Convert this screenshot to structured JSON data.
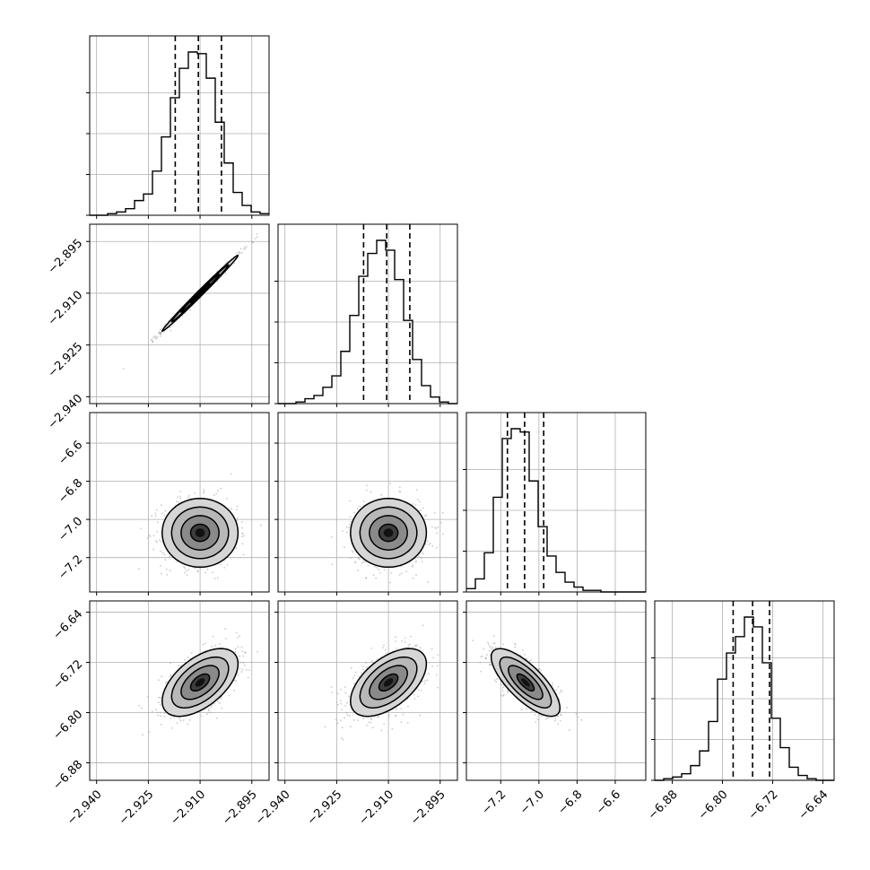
{
  "figure": {
    "background": "#ffffff"
  },
  "chart_data": {
    "type": "corner",
    "grid": true,
    "colors": {
      "ink": "#000000",
      "grid": "#b0b0b0",
      "scatter": "#9e9e9e"
    },
    "params": [
      {
        "range": [
          -2.942,
          -2.89
        ],
        "ticks": [
          -2.94,
          -2.925,
          -2.91,
          -2.895
        ],
        "tick_labels": [
          "−2.940",
          "−2.925",
          "−2.910",
          "−2.895"
        ],
        "mean": -2.91,
        "sd": 0.0055,
        "quantiles": [
          -2.9172,
          -2.9105,
          -2.9038
        ]
      },
      {
        "range": [
          -2.942,
          -2.89
        ],
        "ticks": [
          -2.94,
          -2.925,
          -2.91,
          -2.895
        ],
        "tick_labels": [
          "−2.940",
          "−2.925",
          "−2.910",
          "−2.895"
        ],
        "mean": -2.91,
        "sd": 0.0055,
        "quantiles": [
          -2.9172,
          -2.9105,
          -2.9038
        ]
      },
      {
        "range": [
          -7.38,
          -6.44
        ],
        "ticks": [
          -7.2,
          -7.0,
          -6.8,
          -6.6
        ],
        "tick_labels": [
          "−7.2",
          "−7.0",
          "−6.8",
          "−6.6"
        ],
        "mean": -7.07,
        "sd": 0.09,
        "quantiles": [
          -7.165,
          -7.075,
          -6.975
        ]
      },
      {
        "range": [
          -6.908,
          -6.622
        ],
        "ticks": [
          -6.88,
          -6.8,
          -6.72,
          -6.64
        ],
        "tick_labels": [
          "−6.88",
          "−6.80",
          "−6.72",
          "−6.64"
        ],
        "mean": -6.752,
        "sd": 0.027,
        "quantiles": [
          -6.783,
          -6.752,
          -6.725
        ]
      }
    ],
    "histograms": [
      [
        0,
        0,
        1,
        2,
        4,
        9,
        13,
        27,
        48,
        72,
        90,
        100,
        99,
        84,
        57,
        32,
        14,
        6,
        2,
        1
      ],
      [
        0,
        0,
        1,
        3,
        5,
        10,
        17,
        32,
        54,
        78,
        92,
        100,
        94,
        76,
        51,
        27,
        11,
        4,
        1,
        0
      ],
      [
        2,
        8,
        24,
        58,
        94,
        100,
        98,
        68,
        40,
        22,
        12,
        6,
        3,
        1,
        1,
        0,
        0,
        0,
        0,
        0
      ],
      [
        0,
        1,
        2,
        4,
        9,
        18,
        36,
        62,
        78,
        88,
        100,
        94,
        72,
        38,
        20,
        8,
        3,
        1,
        0,
        0
      ]
    ],
    "correlations": [
      {
        "row": 1,
        "col": 0,
        "rho": 0.995
      },
      {
        "row": 2,
        "col": 0,
        "rho": 0.0
      },
      {
        "row": 2,
        "col": 1,
        "rho": 0.0
      },
      {
        "row": 3,
        "col": 0,
        "rho": 0.55
      },
      {
        "row": 3,
        "col": 1,
        "rho": 0.55
      },
      {
        "row": 3,
        "col": 2,
        "rho": -0.75
      }
    ],
    "contour_levels_sigma": [
      0.5,
      1.0,
      1.5,
      2.0
    ]
  }
}
